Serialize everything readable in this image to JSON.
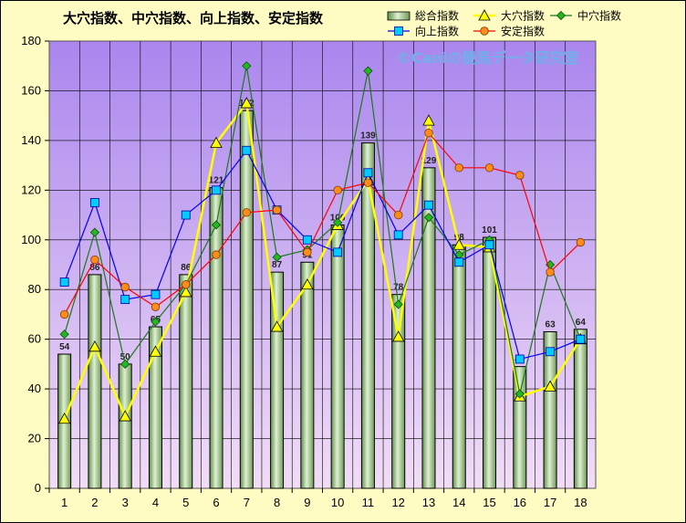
{
  "chart_data": {
    "type": "bar",
    "title": "大穴指数、中穴指数、向上指数、安定指数",
    "watermark": "©Caniの競馬データ研究室",
    "xlabel": "",
    "ylabel": "",
    "categories": [
      "1",
      "2",
      "3",
      "4",
      "5",
      "6",
      "7",
      "8",
      "9",
      "10",
      "11",
      "12",
      "13",
      "14",
      "15",
      "16",
      "17",
      "18"
    ],
    "ylim": [
      0,
      180
    ],
    "yticks": [
      "0",
      "20",
      "40",
      "60",
      "80",
      "100",
      "120",
      "140",
      "160",
      "180"
    ],
    "grid": true,
    "legend_position": "top-right",
    "bar_series": {
      "name": "総合指数",
      "values": [
        54,
        86,
        50,
        65,
        86,
        121,
        152,
        87,
        91,
        106,
        139,
        78,
        129,
        98,
        101,
        49,
        63,
        64
      ],
      "labels": [
        "54",
        "86",
        "50",
        "65",
        "86",
        "121",
        "152",
        "87",
        "91",
        "106",
        "139",
        "78",
        "129",
        "98",
        "101",
        "49",
        "63",
        "64"
      ]
    },
    "series": [
      {
        "name": "大穴指数",
        "type": "line",
        "marker": "triangle",
        "color": "#ffff00",
        "values": [
          28,
          57,
          29,
          55,
          79,
          139,
          155,
          65,
          82,
          106,
          124,
          61,
          148,
          98,
          97,
          37,
          41,
          60
        ]
      },
      {
        "name": "中穴指数",
        "type": "line",
        "marker": "diamond",
        "color": "#1a7a1a",
        "values": [
          62,
          103,
          50,
          67,
          82,
          106,
          170,
          93,
          96,
          107,
          168,
          74,
          109,
          94,
          100,
          38,
          90,
          60
        ]
      },
      {
        "name": "向上指数",
        "type": "line",
        "marker": "square",
        "color": "#0000ff",
        "values": [
          83,
          115,
          76,
          78,
          110,
          120,
          136,
          112,
          100,
          95,
          127,
          102,
          114,
          91,
          98,
          52,
          55,
          60
        ]
      },
      {
        "name": "安定指数",
        "type": "line",
        "marker": "circle",
        "color": "#ff0000",
        "values": [
          70,
          92,
          81,
          73,
          82,
          94,
          111,
          112,
          95,
          120,
          123,
          110,
          143,
          129,
          129,
          126,
          87,
          99
        ]
      }
    ],
    "colors": {
      "plot_top": "#aa86ee",
      "plot_bottom": "#f2ddf6",
      "bar_fill": "#93c07c",
      "bar_edge": "#000000",
      "triangle_fill": "#ffff00",
      "diamond_fill": "#22b822",
      "square_fill": "#00ccff",
      "circle_fill": "#ff8c1a"
    }
  }
}
